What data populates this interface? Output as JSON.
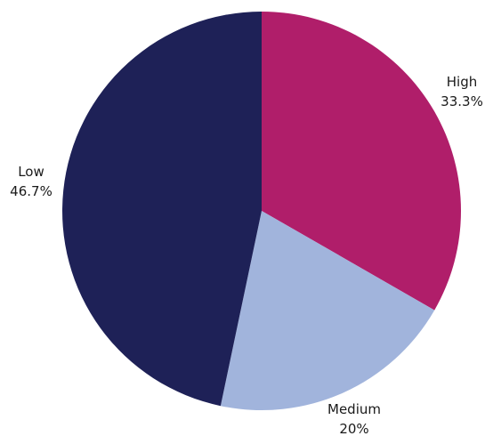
{
  "chart_data": {
    "type": "pie",
    "title": "",
    "start": "top",
    "direction": "clockwise",
    "slices": [
      {
        "label": "High",
        "value": 33.3,
        "value_label": "33.3%",
        "color": "#b01e6a"
      },
      {
        "label": "Medium",
        "value": 20.0,
        "value_label": "20%",
        "color": "#a1b4dc"
      },
      {
        "label": "Low",
        "value": 46.7,
        "value_label": "46.7%",
        "color": "#1e2157"
      }
    ]
  }
}
